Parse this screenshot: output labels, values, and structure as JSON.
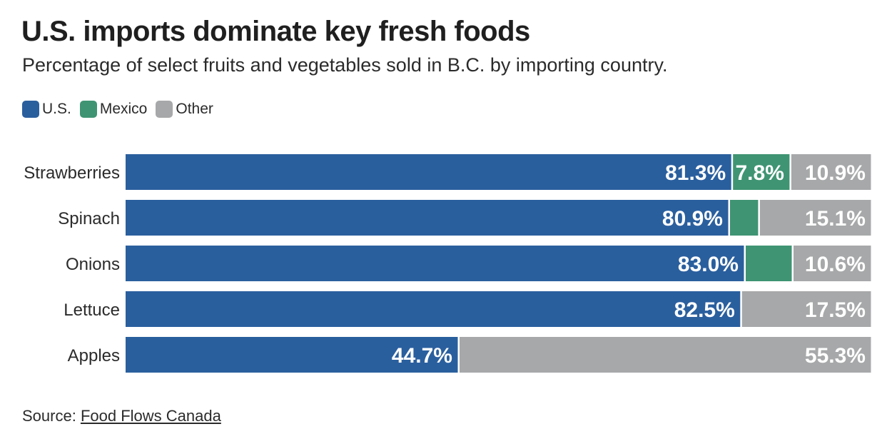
{
  "title": "U.S. imports dominate key fresh foods",
  "subtitle": "Percentage of select fruits and vegetables sold in B.C. by importing country.",
  "legend": [
    {
      "label": "U.S.",
      "color": "#2a5f9e"
    },
    {
      "label": "Mexico",
      "color": "#3f9473"
    },
    {
      "label": "Other",
      "color": "#a7a8a9"
    }
  ],
  "source": {
    "prefix": "Source: ",
    "link_text": "Food Flows Canada"
  },
  "chart_data": {
    "type": "bar",
    "orientation": "horizontal",
    "stacked": true,
    "categories": [
      "Strawberries",
      "Spinach",
      "Onions",
      "Lettuce",
      "Apples"
    ],
    "series": [
      {
        "name": "U.S.",
        "color": "#2a5f9e",
        "values": [
          81.3,
          80.9,
          83.0,
          82.5,
          44.7
        ],
        "labels": [
          "81.3%",
          "80.9%",
          "83.0%",
          "82.5%",
          "44.7%"
        ]
      },
      {
        "name": "Mexico",
        "color": "#3f9473",
        "values": [
          7.8,
          4.0,
          6.4,
          0,
          0
        ],
        "labels": [
          "7.8%",
          "",
          "",
          "",
          ""
        ]
      },
      {
        "name": "Other",
        "color": "#a7a8a9",
        "values": [
          10.9,
          15.1,
          10.6,
          17.5,
          55.3
        ],
        "labels": [
          "10.9%",
          "15.1%",
          "10.6%",
          "17.5%",
          "55.3%"
        ]
      }
    ],
    "xlim": [
      0,
      100
    ],
    "grid": false,
    "legend_position": "top-left"
  }
}
